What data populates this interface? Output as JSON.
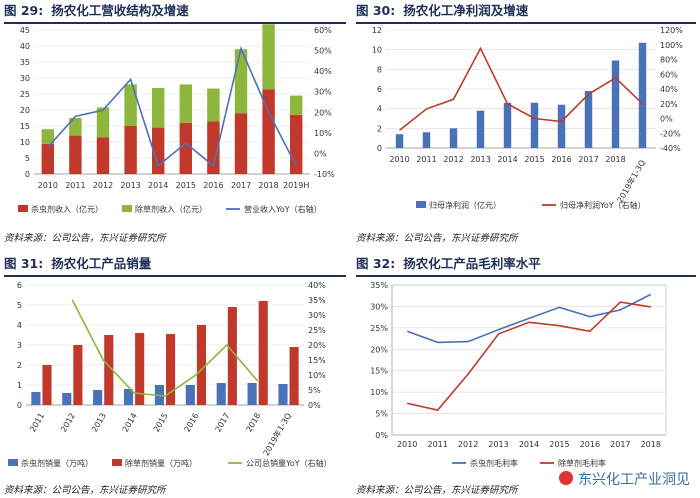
{
  "colors": {
    "red": "#c0392b",
    "green": "#8db63c",
    "blue": "#4a72b8",
    "grid": "#d9d9d9",
    "axis": "#666666",
    "title": "#1f2f55"
  },
  "source_text": "资料来源：公司公告，东兴证券研究所",
  "watermark": "东兴化工产业洞见",
  "chart_data": [
    {
      "id": "fig29",
      "fig": "图 29:",
      "title": "扬农化工营收结构及增速",
      "type": "bar",
      "stacked": true,
      "categories": [
        "2010",
        "2011",
        "2012",
        "2013",
        "2014",
        "2015",
        "2016",
        "2017",
        "2018",
        "2019H"
      ],
      "series": [
        {
          "name": "杀虫剂收入（亿元）",
          "color": "#c0392b",
          "values": [
            9.4,
            12.0,
            11.5,
            15.0,
            14.5,
            16.0,
            16.5,
            19.0,
            26.5,
            18.5
          ]
        },
        {
          "name": "除草剂收入（亿元）",
          "color": "#8db63c",
          "values": [
            4.6,
            5.5,
            9.3,
            13.0,
            12.4,
            12.0,
            10.2,
            20.0,
            20.3,
            6.0
          ]
        },
        {
          "name": "营业收入YoY（右轴）",
          "color": "#4a72b8",
          "type": "line",
          "axis": "right",
          "values": [
            3,
            18,
            21,
            36,
            -6,
            5,
            -6,
            51,
            20,
            -6
          ]
        }
      ],
      "y_left": {
        "min": 0,
        "max": 45,
        "ticks": [
          "0",
          "5",
          "10",
          "15",
          "20",
          "25",
          "30",
          "35",
          "40",
          "45"
        ]
      },
      "y_right": {
        "min": -10,
        "max": 60,
        "ticks": [
          "-10%",
          "0%",
          "10%",
          "20%",
          "30%",
          "40%",
          "50%",
          "60%"
        ]
      }
    },
    {
      "id": "fig30",
      "fig": "图 30:",
      "title": "扬农化工净利润及增速",
      "type": "bar",
      "categories": [
        "2010",
        "2011",
        "2012",
        "2013",
        "2014",
        "2015",
        "2016",
        "2017",
        "2018",
        "2019年1-3Q"
      ],
      "rotate_last": true,
      "series": [
        {
          "name": "归母净利润（亿元）",
          "color": "#4a72b8",
          "values": [
            1.4,
            1.6,
            2.0,
            3.8,
            4.6,
            4.6,
            4.4,
            5.8,
            8.9,
            10.7
          ]
        },
        {
          "name": "归母净利润YoY（右轴）",
          "color": "#c0392b",
          "type": "line",
          "axis": "right",
          "values": [
            -16,
            13,
            26,
            95,
            20,
            0,
            -4,
            33,
            55,
            20
          ]
        }
      ],
      "y_left": {
        "min": 0,
        "max": 12,
        "ticks": [
          "0",
          "2",
          "4",
          "6",
          "8",
          "10",
          "12"
        ]
      },
      "y_right": {
        "min": -40,
        "max": 120,
        "ticks": [
          "-40%",
          "-20%",
          "0%",
          "20%",
          "40%",
          "60%",
          "80%",
          "100%",
          "120%"
        ]
      }
    },
    {
      "id": "fig31",
      "fig": "图 31:",
      "title": "扬农化工产品销量",
      "type": "bar",
      "categories": [
        "2011",
        "2012",
        "2013",
        "2014",
        "2015",
        "2016",
        "2017",
        "2018",
        "2019年1-3Q"
      ],
      "rotate_all": true,
      "series": [
        {
          "name": "杀虫剂销量（万吨）",
          "color": "#4a72b8",
          "values": [
            0.65,
            0.6,
            0.75,
            0.8,
            1.0,
            1.0,
            1.1,
            1.1,
            1.05
          ]
        },
        {
          "name": "除草剂销量（万吨）",
          "color": "#c0392b",
          "values": [
            2.0,
            3.0,
            3.5,
            3.6,
            3.55,
            4.0,
            4.9,
            5.2,
            2.9
          ]
        },
        {
          "name": "公司总销量YoY（右轴）",
          "color": "#8db63c",
          "type": "line",
          "axis": "right",
          "values": [
            null,
            35,
            15,
            4,
            3,
            10,
            20,
            8,
            null
          ]
        }
      ],
      "y_left": {
        "min": 0,
        "max": 6,
        "ticks": [
          "0",
          "1",
          "2",
          "3",
          "4",
          "5",
          "6"
        ]
      },
      "y_right": {
        "min": 0,
        "max": 40,
        "ticks": [
          "0%",
          "5%",
          "10%",
          "15%",
          "20%",
          "25%",
          "30%",
          "35%",
          "40%"
        ]
      }
    },
    {
      "id": "fig32",
      "fig": "图 32:",
      "title": "扬农化工产品毛利率水平",
      "type": "line",
      "categories": [
        "2010",
        "2011",
        "2012",
        "2013",
        "2014",
        "2015",
        "2016",
        "2017",
        "2018"
      ],
      "series": [
        {
          "name": "杀虫剂毛利率",
          "color": "#4a72b8",
          "values": [
            24.2,
            21.6,
            21.8,
            24.6,
            27.2,
            29.8,
            27.6,
            29.2,
            32.8
          ]
        },
        {
          "name": "除草剂毛利率",
          "color": "#c0392b",
          "values": [
            7.4,
            5.8,
            14.2,
            23.6,
            26.3,
            25.5,
            24.2,
            31.0,
            29.9
          ]
        }
      ],
      "y_left": {
        "min": 0,
        "max": 35,
        "ticks": [
          "0%",
          "5%",
          "10%",
          "15%",
          "20%",
          "25%",
          "30%",
          "35%"
        ]
      }
    }
  ]
}
